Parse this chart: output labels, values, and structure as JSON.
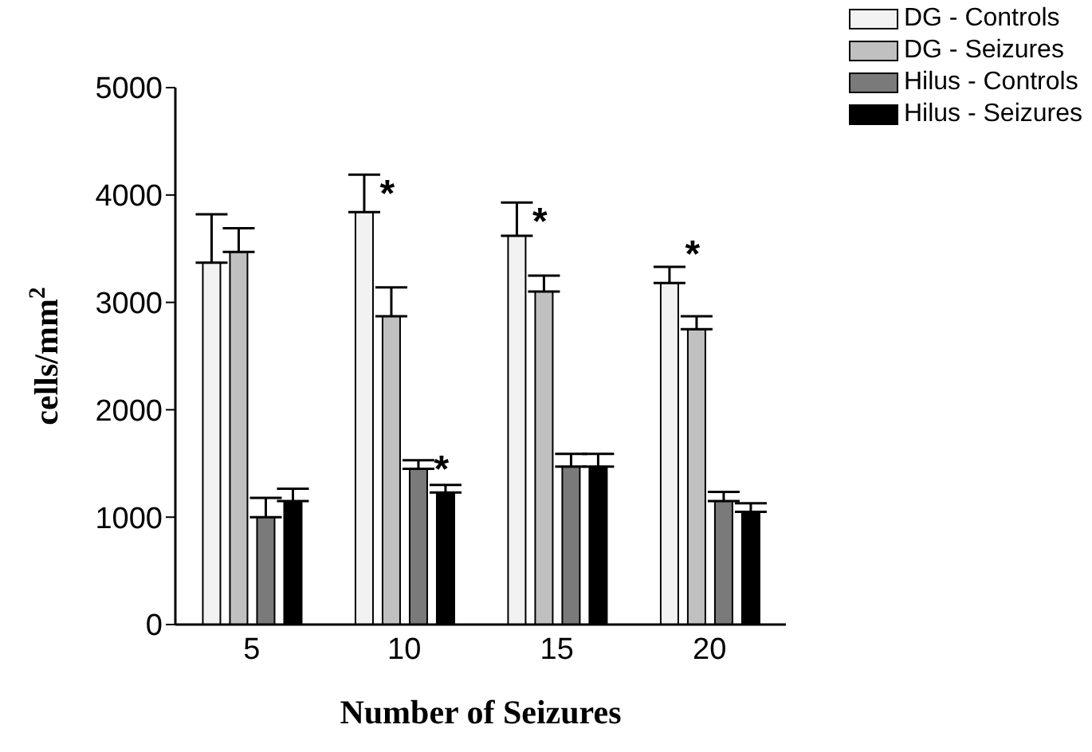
{
  "chart_data": {
    "type": "bar",
    "xlabel": "Number of Seizures",
    "ylabel": "cells/mm$^{2}$",
    "categories": [
      "5",
      "10",
      "15",
      "20"
    ],
    "series": [
      {
        "name": "DG - Controls",
        "color": "#f2f2f2",
        "values": [
          3370,
          3840,
          3620,
          3180
        ],
        "errors": [
          [
            3370,
            3820
          ],
          [
            3840,
            4190
          ],
          [
            3620,
            3930
          ],
          [
            3180,
            3330
          ]
        ]
      },
      {
        "name": "DG - Seizures",
        "color": "#c0c0c0",
        "values": [
          3470,
          2870,
          3100,
          2750
        ],
        "errors": [
          [
            3470,
            3690
          ],
          [
            2870,
            3140
          ],
          [
            3100,
            3250
          ],
          [
            2750,
            2870
          ]
        ]
      },
      {
        "name": "Hilus - Controls",
        "color": "#7a7a7a",
        "values": [
          1000,
          1450,
          1470,
          1150
        ],
        "errors": [
          [
            1000,
            1180
          ],
          [
            1450,
            1530
          ],
          [
            1470,
            1590
          ],
          [
            1150,
            1235
          ]
        ]
      },
      {
        "name": "Hilus - Seizures",
        "color": "#000000",
        "values": [
          1150,
          1230,
          1470,
          1050
        ],
        "errors": [
          [
            1150,
            1265
          ],
          [
            1230,
            1300
          ],
          [
            1470,
            1590
          ],
          [
            1050,
            1130
          ]
        ]
      }
    ],
    "ylim": [
      0,
      5000
    ],
    "yticks": [
      0,
      1000,
      2000,
      3000,
      4000,
      5000
    ],
    "grid": false,
    "legend": "top right",
    "annotations": [
      "*",
      {
        "text": "*",
        "x": "10",
        "y": 1450
      },
      "*",
      "*"
    ]
  }
}
